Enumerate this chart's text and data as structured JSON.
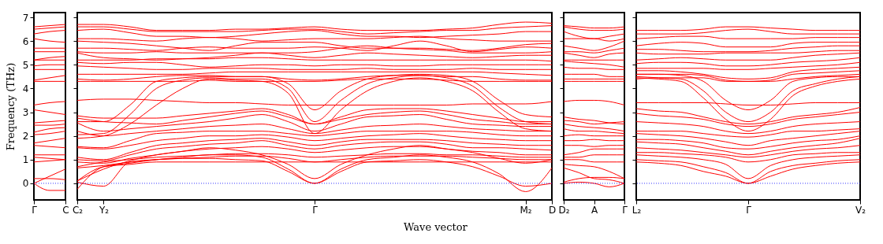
{
  "chart_data": [
    {
      "type": "line",
      "ylabel": "Frequency (THz)",
      "categories": [
        "Γ",
        null,
        "C"
      ],
      "ylim": [
        -0.7,
        7.2
      ],
      "yticks": [
        0,
        1,
        2,
        3,
        4,
        5,
        6,
        7
      ],
      "ref_lines": [
        {
          "axis": "y",
          "value": 0,
          "color": "#0000ff",
          "line_style": "dotted"
        }
      ],
      "series": [
        {
          "color": "#ff0000",
          "values": [
            6.6,
            6.65,
            6.7
          ]
        },
        {
          "color": "#ff0000",
          "values": [
            6.5,
            6.55,
            6.6
          ]
        },
        {
          "color": "#ff0000",
          "values": [
            6.3,
            6.4,
            6.45
          ]
        },
        {
          "color": "#ff0000",
          "values": [
            6.1,
            6.0,
            5.95
          ]
        },
        {
          "color": "#ff0000",
          "values": [
            5.7,
            5.7,
            5.7
          ]
        },
        {
          "color": "#ff0000",
          "values": [
            5.55,
            5.55,
            5.55
          ]
        },
        {
          "color": "#ff0000",
          "values": [
            5.2,
            5.3,
            5.35
          ]
        },
        {
          "color": "#ff0000",
          "values": [
            5.2,
            5.2,
            5.2
          ]
        },
        {
          "color": "#ff0000",
          "values": [
            4.95,
            5.0,
            5.0
          ]
        },
        {
          "color": "#ff0000",
          "values": [
            4.8,
            4.8,
            4.8
          ]
        },
        {
          "color": "#ff0000",
          "values": [
            4.35,
            4.45,
            4.55
          ]
        },
        {
          "color": "#ff0000",
          "values": [
            4.3,
            4.3,
            4.3
          ]
        },
        {
          "color": "#ff0000",
          "values": [
            3.3,
            3.4,
            3.45
          ]
        },
        {
          "color": "#ff0000",
          "values": [
            3.1,
            3.0,
            2.9
          ]
        },
        {
          "color": "#ff0000",
          "values": [
            2.55,
            2.6,
            2.65
          ]
        },
        {
          "color": "#ff0000",
          "values": [
            2.45,
            2.45,
            2.5
          ]
        },
        {
          "color": "#ff0000",
          "values": [
            2.15,
            2.3,
            2.35
          ]
        },
        {
          "color": "#ff0000",
          "values": [
            2.05,
            2.1,
            2.2
          ]
        },
        {
          "color": "#ff0000",
          "values": [
            1.7,
            1.8,
            1.9
          ]
        },
        {
          "color": "#ff0000",
          "values": [
            1.6,
            1.55,
            1.5
          ]
        },
        {
          "color": "#ff0000",
          "values": [
            1.2,
            1.2,
            1.2
          ]
        },
        {
          "color": "#ff0000",
          "values": [
            1.1,
            1.05,
            1.0
          ]
        },
        {
          "color": "#ff0000",
          "values": [
            0.9,
            0.95,
            1.0
          ]
        },
        {
          "color": "#ff0000",
          "values": [
            0.2,
            0.2,
            0.15
          ]
        },
        {
          "color": "#ff0000",
          "values": [
            0,
            0.3,
            0.6
          ]
        },
        {
          "color": "#ff0000",
          "values": [
            0,
            -0.3,
            -0.3
          ]
        }
      ]
    },
    {
      "type": "line",
      "xlabel": "Wave vector",
      "tick_labels": "x",
      "categories": [
        "C₂",
        "Y₂",
        null,
        null,
        null,
        null,
        null,
        null,
        null,
        "Γ",
        null,
        null,
        null,
        null,
        null,
        null,
        null,
        "M₂",
        "D"
      ],
      "ylim": [
        -0.7,
        7.2
      ],
      "yticks": [
        0,
        1,
        2,
        3,
        4,
        5,
        6,
        7
      ],
      "ref_lines": [
        {
          "axis": "y",
          "value": 0,
          "color": "#0000ff",
          "line_style": "dotted"
        }
      ],
      "series": [
        {
          "color": "#ff0000",
          "values": [
            6.7,
            6.7,
            6.6,
            6.45,
            6.45,
            6.45,
            6.5,
            6.5,
            6.55,
            6.6,
            6.5,
            6.45,
            6.45,
            6.45,
            6.5,
            6.55,
            6.7,
            6.8,
            6.75
          ]
        },
        {
          "color": "#ff0000",
          "values": [
            6.6,
            6.6,
            6.5,
            6.4,
            6.4,
            6.4,
            6.4,
            6.45,
            6.5,
            6.5,
            6.4,
            6.3,
            6.35,
            6.4,
            6.45,
            6.45,
            6.55,
            6.6,
            6.65
          ]
        },
        {
          "color": "#ff0000",
          "values": [
            6.45,
            6.5,
            6.35,
            6.2,
            6.2,
            6.15,
            6.2,
            6.3,
            6.4,
            6.45,
            6.3,
            6.2,
            6.2,
            6.15,
            6.2,
            6.25,
            6.3,
            6.4,
            6.4
          ]
        },
        {
          "color": "#ff0000",
          "values": [
            6.1,
            6.1,
            6.05,
            6.0,
            6.1,
            6.15,
            6.1,
            6.0,
            6.05,
            6.1,
            6.1,
            6.1,
            6.15,
            6.2,
            6.1,
            6.05,
            6.0,
            6.0,
            6.0
          ]
        },
        {
          "color": "#ff0000",
          "values": [
            6.0,
            5.95,
            5.9,
            5.8,
            5.7,
            5.6,
            5.8,
            5.95,
            5.95,
            5.95,
            5.8,
            5.7,
            5.7,
            5.7,
            5.65,
            5.6,
            5.7,
            5.85,
            5.9
          ]
        },
        {
          "color": "#ff0000",
          "values": [
            5.7,
            5.7,
            5.65,
            5.6,
            5.7,
            5.75,
            5.7,
            5.7,
            5.7,
            5.75,
            5.7,
            5.6,
            5.8,
            6.0,
            5.8,
            5.55,
            5.65,
            5.75,
            5.7
          ]
        },
        {
          "color": "#ff0000",
          "values": [
            5.55,
            5.5,
            5.5,
            5.55,
            5.5,
            5.5,
            5.5,
            5.5,
            5.5,
            5.55,
            5.7,
            5.8,
            5.7,
            5.65,
            5.6,
            5.5,
            5.5,
            5.5,
            5.55
          ]
        },
        {
          "color": "#ff0000",
          "values": [
            5.5,
            5.3,
            5.25,
            5.2,
            5.25,
            5.3,
            5.4,
            5.5,
            5.4,
            5.3,
            5.4,
            5.5,
            5.45,
            5.4,
            5.35,
            5.3,
            5.35,
            5.4,
            5.4
          ]
        },
        {
          "color": "#ff0000",
          "values": [
            5.2,
            5.2,
            5.2,
            5.25,
            5.25,
            5.25,
            5.3,
            5.3,
            5.25,
            5.2,
            5.2,
            5.2,
            5.2,
            5.2,
            5.2,
            5.2,
            5.2,
            5.2,
            5.15
          ]
        },
        {
          "color": "#ff0000",
          "values": [
            5.1,
            5.05,
            5.1,
            5.1,
            5.0,
            4.9,
            4.95,
            5.0,
            5.0,
            4.95,
            5.0,
            5.0,
            4.95,
            4.95,
            5.0,
            5.0,
            5.0,
            5.0,
            5.0
          ]
        },
        {
          "color": "#ff0000",
          "values": [
            4.95,
            4.9,
            4.85,
            4.8,
            4.8,
            4.85,
            4.85,
            4.85,
            4.8,
            4.8,
            4.8,
            4.85,
            4.8,
            4.8,
            4.8,
            4.85,
            4.8,
            4.8,
            4.8
          ]
        },
        {
          "color": "#ff0000",
          "values": [
            4.6,
            4.6,
            4.6,
            4.6,
            4.6,
            4.65,
            4.7,
            4.7,
            4.7,
            4.7,
            4.7,
            4.7,
            4.7,
            4.7,
            4.7,
            4.7,
            4.65,
            4.6,
            4.55
          ]
        },
        {
          "color": "#ff0000",
          "values": [
            4.4,
            4.35,
            4.4,
            4.5,
            4.55,
            4.55,
            4.5,
            4.5,
            4.4,
            4.35,
            4.4,
            4.5,
            4.55,
            4.55,
            4.5,
            4.5,
            4.4,
            4.35,
            4.35
          ]
        },
        {
          "color": "#ff0000",
          "values": [
            4.3,
            4.3,
            4.3,
            4.3,
            4.3,
            4.35,
            4.3,
            4.3,
            4.3,
            4.3,
            4.35,
            4.4,
            4.4,
            4.4,
            4.35,
            4.3,
            4.3,
            4.3,
            4.3
          ]
        },
        {
          "color": "#ff0000",
          "values": [
            2.6,
            2.6,
            3.3,
            4.3,
            4.45,
            4.5,
            4.5,
            4.5,
            4.2,
            3.1,
            3.9,
            4.4,
            4.55,
            4.6,
            4.55,
            4.3,
            3.5,
            2.9,
            2.8
          ]
        },
        {
          "color": "#ff0000",
          "values": [
            2.05,
            2.1,
            2.9,
            4.0,
            4.35,
            4.45,
            4.4,
            4.4,
            4.0,
            2.6,
            3.5,
            4.2,
            4.45,
            4.55,
            4.45,
            4.1,
            3.2,
            2.6,
            2.5
          ]
        },
        {
          "color": "#ff0000",
          "values": [
            1.9,
            2.0,
            2.5,
            3.3,
            4.0,
            4.4,
            4.35,
            4.3,
            3.8,
            2.1,
            3.1,
            3.9,
            4.3,
            4.45,
            4.3,
            3.9,
            3.0,
            2.3,
            2.2
          ]
        },
        {
          "color": "#ff0000",
          "values": [
            3.5,
            3.55,
            3.55,
            3.5,
            3.45,
            3.4,
            3.4,
            3.35,
            3.3,
            3.3,
            3.3,
            3.3,
            3.3,
            3.3,
            3.3,
            3.35,
            3.35,
            3.35,
            3.45
          ]
        },
        {
          "color": "#ff0000",
          "values": [
            2.85,
            2.75,
            2.75,
            2.75,
            2.85,
            2.95,
            3.05,
            3.15,
            2.9,
            2.5,
            2.8,
            3.1,
            3.15,
            3.15,
            3.05,
            2.9,
            2.75,
            2.6,
            2.6
          ]
        },
        {
          "color": "#ff0000",
          "values": [
            2.75,
            2.6,
            2.55,
            2.5,
            2.65,
            2.8,
            2.95,
            3.05,
            2.8,
            2.5,
            2.7,
            2.9,
            3.0,
            3.05,
            2.9,
            2.7,
            2.6,
            2.5,
            2.5
          ]
        },
        {
          "color": "#ff0000",
          "values": [
            2.55,
            2.2,
            2.3,
            2.4,
            2.5,
            2.6,
            2.75,
            2.9,
            2.6,
            2.2,
            2.5,
            2.8,
            2.85,
            2.9,
            2.7,
            2.5,
            2.45,
            2.4,
            2.4
          ]
        },
        {
          "color": "#ff0000",
          "values": [
            2.2,
            2.0,
            2.1,
            2.2,
            2.3,
            2.4,
            2.45,
            2.5,
            2.3,
            2.1,
            2.25,
            2.4,
            2.45,
            2.5,
            2.4,
            2.3,
            2.25,
            2.2,
            2.2
          ]
        },
        {
          "color": "#ff0000",
          "values": [
            1.55,
            1.5,
            1.8,
            2.1,
            2.15,
            2.2,
            2.2,
            2.2,
            2.1,
            2.0,
            2.1,
            2.2,
            2.2,
            2.2,
            2.2,
            2.15,
            2.05,
            2.0,
            2.0
          ]
        },
        {
          "color": "#ff0000",
          "values": [
            1.5,
            1.45,
            1.6,
            1.8,
            1.9,
            2.0,
            2.0,
            2.05,
            1.95,
            1.8,
            1.9,
            2.0,
            2.05,
            2.1,
            2.0,
            1.9,
            1.85,
            1.8,
            1.8
          ]
        },
        {
          "color": "#ff0000",
          "values": [
            1.1,
            1.0,
            1.3,
            1.6,
            1.7,
            1.8,
            1.85,
            1.9,
            1.75,
            1.6,
            1.75,
            1.85,
            1.85,
            1.85,
            1.8,
            1.7,
            1.65,
            1.6,
            1.6
          ]
        },
        {
          "color": "#ff0000",
          "values": [
            1.0,
            0.95,
            1.2,
            1.45,
            1.55,
            1.65,
            1.7,
            1.8,
            1.6,
            1.45,
            1.6,
            1.7,
            1.75,
            1.75,
            1.65,
            1.5,
            1.5,
            1.45,
            1.4
          ]
        },
        {
          "color": "#ff0000",
          "values": [
            0.9,
            0.85,
            1.05,
            1.2,
            1.35,
            1.45,
            1.5,
            1.55,
            1.45,
            1.3,
            1.4,
            1.5,
            1.55,
            1.55,
            1.45,
            1.35,
            1.3,
            1.2,
            1.2
          ]
        },
        {
          "color": "#ff0000",
          "values": [
            0.7,
            0.9,
            1.0,
            1.1,
            1.15,
            1.2,
            1.25,
            1.25,
            1.2,
            1.1,
            1.15,
            1.2,
            1.25,
            1.25,
            1.2,
            1.2,
            1.15,
            1.1,
            1.1
          ]
        },
        {
          "color": "#ff0000",
          "values": [
            0.65,
            0.75,
            0.9,
            1.0,
            1.05,
            1.1,
            1.15,
            1.15,
            1.05,
            0.9,
            1.0,
            1.1,
            1.15,
            1.15,
            1.15,
            1.1,
            1.05,
            1.0,
            1.0
          ]
        },
        {
          "color": "#ff0000",
          "values": [
            0.1,
            0.7,
            0.8,
            0.9,
            0.9,
            0.9,
            0.9,
            0.9,
            0.9,
            0.9,
            0.9,
            0.9,
            0.9,
            0.9,
            0.9,
            0.9,
            0.9,
            0.9,
            0.9
          ]
        },
        {
          "color": "#ff0000",
          "values": [
            -0.25,
            0.7,
            0.85,
            1.0,
            1.1,
            1.2,
            1.2,
            1.1,
            0.6,
            0.0,
            0.6,
            1.0,
            1.1,
            1.2,
            1.1,
            0.9,
            0.4,
            -0.35,
            0.65
          ]
        },
        {
          "color": "#ff0000",
          "values": [
            0.05,
            -0.12,
            0.9,
            1.0,
            1.05,
            1.05,
            1.0,
            0.95,
            0.5,
            0.0,
            0.5,
            0.9,
            0.95,
            1.0,
            0.9,
            0.7,
            0.3,
            -0.12,
            0.0
          ]
        },
        {
          "color": "#ff0000",
          "values": [
            0.1,
            0.6,
            0.95,
            1.2,
            1.35,
            1.5,
            1.4,
            1.2,
            0.8,
            0.2,
            0.8,
            1.2,
            1.45,
            1.6,
            1.45,
            1.3,
            1.05,
            0.85,
            1.0
          ]
        }
      ]
    },
    {
      "type": "line",
      "tick_labels": "x",
      "categories": [
        "D₂",
        null,
        "A",
        null,
        "Γ"
      ],
      "ylim": [
        -0.7,
        7.2
      ],
      "yticks": [
        0,
        1,
        2,
        3,
        4,
        5,
        6,
        7
      ],
      "ref_lines": [
        {
          "axis": "y",
          "value": 0,
          "color": "#0000ff",
          "line_style": "dotted"
        }
      ],
      "series": [
        {
          "color": "#ff0000",
          "values": [
            6.65,
            6.6,
            6.55,
            6.55,
            6.6
          ]
        },
        {
          "color": "#ff0000",
          "values": [
            6.6,
            6.5,
            6.45,
            6.45,
            6.5
          ]
        },
        {
          "color": "#ff0000",
          "values": [
            6.4,
            6.2,
            6.1,
            6.2,
            6.3
          ]
        },
        {
          "color": "#ff0000",
          "values": [
            6.1,
            6.1,
            6.1,
            6.0,
            6.1
          ]
        },
        {
          "color": "#ff0000",
          "values": [
            5.8,
            5.7,
            5.6,
            5.75,
            6.0
          ]
        },
        {
          "color": "#ff0000",
          "values": [
            5.55,
            5.55,
            5.5,
            5.6,
            5.7
          ]
        },
        {
          "color": "#ff0000",
          "values": [
            5.5,
            5.4,
            5.3,
            5.45,
            5.5
          ]
        },
        {
          "color": "#ff0000",
          "values": [
            5.2,
            5.2,
            5.2,
            5.2,
            5.2
          ]
        },
        {
          "color": "#ff0000",
          "values": [
            5.15,
            5.1,
            5.05,
            5.0,
            4.9
          ]
        },
        {
          "color": "#ff0000",
          "values": [
            4.9,
            4.85,
            4.85,
            4.8,
            4.8
          ]
        },
        {
          "color": "#ff0000",
          "values": [
            4.6,
            4.6,
            4.6,
            4.5,
            4.5
          ]
        },
        {
          "color": "#ff0000",
          "values": [
            4.4,
            4.4,
            4.4,
            4.4,
            4.4
          ]
        },
        {
          "color": "#ff0000",
          "values": [
            4.3,
            4.3,
            4.3,
            4.3,
            4.3
          ]
        },
        {
          "color": "#ff0000",
          "values": [
            3.45,
            3.5,
            3.5,
            3.45,
            3.3
          ]
        },
        {
          "color": "#ff0000",
          "values": [
            2.8,
            2.7,
            2.65,
            2.55,
            2.5
          ]
        },
        {
          "color": "#ff0000",
          "values": [
            2.65,
            2.6,
            2.5,
            2.55,
            2.6
          ]
        },
        {
          "color": "#ff0000",
          "values": [
            2.5,
            2.4,
            2.35,
            2.3,
            2.2
          ]
        },
        {
          "color": "#ff0000",
          "values": [
            2.3,
            2.2,
            2.2,
            2.15,
            2.1
          ]
        },
        {
          "color": "#ff0000",
          "values": [
            2.0,
            2.05,
            2.0,
            2.0,
            2.0
          ]
        },
        {
          "color": "#ff0000",
          "values": [
            1.8,
            1.8,
            1.85,
            1.8,
            1.8
          ]
        },
        {
          "color": "#ff0000",
          "values": [
            1.6,
            1.6,
            1.55,
            1.6,
            1.6
          ]
        },
        {
          "color": "#ff0000",
          "values": [
            1.2,
            1.3,
            1.45,
            1.45,
            1.45
          ]
        },
        {
          "color": "#ff0000",
          "values": [
            1.1,
            1.1,
            1.2,
            1.2,
            1.2
          ]
        },
        {
          "color": "#ff0000",
          "values": [
            1.0,
            1.0,
            0.9,
            0.9,
            0.9
          ]
        },
        {
          "color": "#ff0000",
          "values": [
            0.8,
            0.75,
            0.7,
            0.5,
            0.2
          ]
        },
        {
          "color": "#ff0000",
          "values": [
            0.65,
            0.45,
            0.2,
            0.15,
            0
          ]
        },
        {
          "color": "#ff0000",
          "values": [
            0.0,
            0.05,
            0.0,
            -0.15,
            0
          ]
        },
        {
          "color": "#ff0000",
          "values": [
            0.05,
            0.2,
            0.25,
            0.25,
            0.2
          ]
        }
      ]
    },
    {
      "type": "line",
      "tick_labels": "x",
      "categories": [
        "L₂",
        null,
        null,
        null,
        null,
        "Γ",
        null,
        null,
        null,
        null,
        "V₂"
      ],
      "ylim": [
        -0.7,
        7.2
      ],
      "yticks": [
        0,
        1,
        2,
        3,
        4,
        5,
        6,
        7
      ],
      "ref_lines": [
        {
          "axis": "y",
          "value": 0,
          "color": "#0000ff",
          "line_style": "dotted"
        }
      ],
      "series": [
        {
          "color": "#ff0000",
          "values": [
            6.45,
            6.45,
            6.45,
            6.5,
            6.6,
            6.6,
            6.55,
            6.5,
            6.45,
            6.45,
            6.45
          ]
        },
        {
          "color": "#ff0000",
          "values": [
            6.3,
            6.3,
            6.3,
            6.35,
            6.45,
            6.5,
            6.4,
            6.3,
            6.3,
            6.3,
            6.3
          ]
        },
        {
          "color": "#ff0000",
          "values": [
            6.1,
            6.15,
            6.2,
            6.2,
            6.1,
            6.1,
            6.1,
            6.1,
            6.15,
            6.15,
            6.15
          ]
        },
        {
          "color": "#ff0000",
          "values": [
            5.8,
            5.9,
            5.95,
            5.9,
            5.75,
            5.75,
            5.75,
            5.9,
            5.95,
            5.95,
            5.95
          ]
        },
        {
          "color": "#ff0000",
          "values": [
            5.65,
            5.65,
            5.6,
            5.55,
            5.55,
            5.55,
            5.6,
            5.7,
            5.75,
            5.8,
            5.8
          ]
        },
        {
          "color": "#ff0000",
          "values": [
            5.5,
            5.45,
            5.45,
            5.45,
            5.5,
            5.5,
            5.5,
            5.5,
            5.55,
            5.6,
            5.6
          ]
        },
        {
          "color": "#ff0000",
          "values": [
            5.2,
            5.25,
            5.3,
            5.25,
            5.2,
            5.2,
            5.2,
            5.3,
            5.4,
            5.45,
            5.5
          ]
        },
        {
          "color": "#ff0000",
          "values": [
            5.05,
            5.1,
            5.1,
            5.05,
            4.95,
            4.95,
            5.0,
            5.1,
            5.15,
            5.2,
            5.3
          ]
        },
        {
          "color": "#ff0000",
          "values": [
            4.85,
            4.85,
            4.85,
            4.85,
            4.8,
            4.8,
            4.85,
            4.9,
            4.95,
            5.0,
            5.1
          ]
        },
        {
          "color": "#ff0000",
          "values": [
            4.75,
            4.75,
            4.7,
            4.6,
            4.45,
            4.4,
            4.45,
            4.7,
            4.8,
            4.85,
            4.9
          ]
        },
        {
          "color": "#ff0000",
          "values": [
            4.6,
            4.6,
            4.6,
            4.55,
            4.35,
            4.3,
            4.35,
            4.6,
            4.65,
            4.7,
            4.75
          ]
        },
        {
          "color": "#ff0000",
          "values": [
            4.4,
            4.45,
            4.45,
            4.45,
            4.3,
            4.3,
            4.3,
            4.4,
            4.5,
            4.55,
            4.6
          ]
        },
        {
          "color": "#ff0000",
          "values": [
            4.6,
            4.6,
            4.55,
            4.3,
            3.5,
            3.1,
            3.5,
            4.3,
            4.45,
            4.5,
            4.5
          ]
        },
        {
          "color": "#ff0000",
          "values": [
            4.5,
            4.45,
            4.4,
            3.9,
            3.0,
            2.6,
            3.0,
            3.9,
            4.2,
            4.4,
            4.5
          ]
        },
        {
          "color": "#ff0000",
          "values": [
            4.45,
            4.4,
            4.3,
            3.6,
            2.7,
            2.2,
            2.7,
            3.7,
            4.1,
            4.3,
            4.4
          ]
        },
        {
          "color": "#ff0000",
          "values": [
            3.4,
            3.4,
            3.4,
            3.4,
            3.35,
            3.3,
            3.3,
            3.35,
            3.4,
            3.4,
            3.4
          ]
        },
        {
          "color": "#ff0000",
          "values": [
            3.15,
            3.05,
            3.0,
            2.8,
            2.6,
            2.5,
            2.6,
            2.8,
            2.9,
            3.0,
            3.2
          ]
        },
        {
          "color": "#ff0000",
          "values": [
            2.95,
            2.85,
            2.8,
            2.7,
            2.5,
            2.4,
            2.5,
            2.7,
            2.8,
            2.9,
            3.0
          ]
        },
        {
          "color": "#ff0000",
          "values": [
            2.6,
            2.55,
            2.5,
            2.4,
            2.2,
            2.1,
            2.2,
            2.4,
            2.5,
            2.55,
            2.6
          ]
        },
        {
          "color": "#ff0000",
          "values": [
            2.2,
            2.2,
            2.2,
            2.1,
            2.0,
            1.95,
            2.05,
            2.2,
            2.2,
            2.25,
            2.3
          ]
        },
        {
          "color": "#ff0000",
          "values": [
            2.1,
            2.05,
            2.0,
            1.9,
            1.75,
            1.6,
            1.8,
            1.9,
            2.0,
            2.1,
            2.2
          ]
        },
        {
          "color": "#ff0000",
          "values": [
            1.85,
            1.85,
            1.8,
            1.7,
            1.5,
            1.45,
            1.55,
            1.7,
            1.8,
            1.85,
            2.0
          ]
        },
        {
          "color": "#ff0000",
          "values": [
            1.75,
            1.7,
            1.65,
            1.5,
            1.35,
            1.2,
            1.35,
            1.5,
            1.6,
            1.7,
            1.9
          ]
        },
        {
          "color": "#ff0000",
          "values": [
            1.5,
            1.45,
            1.4,
            1.3,
            1.2,
            1.1,
            1.2,
            1.35,
            1.45,
            1.5,
            1.6
          ]
        },
        {
          "color": "#ff0000",
          "values": [
            1.3,
            1.3,
            1.25,
            1.2,
            1.1,
            0.9,
            1.0,
            1.2,
            1.25,
            1.3,
            1.3
          ]
        },
        {
          "color": "#ff0000",
          "values": [
            1.2,
            1.15,
            1.1,
            1.0,
            0.8,
            0.2,
            0.75,
            1.0,
            1.1,
            1.15,
            1.2
          ]
        },
        {
          "color": "#ff0000",
          "values": [
            1.0,
            0.95,
            0.9,
            0.7,
            0.45,
            0,
            0.5,
            0.75,
            0.85,
            0.95,
            1.0
          ]
        },
        {
          "color": "#ff0000",
          "values": [
            0.9,
            0.85,
            0.75,
            0.5,
            0.3,
            0,
            0.3,
            0.6,
            0.75,
            0.85,
            0.9
          ]
        }
      ]
    }
  ]
}
